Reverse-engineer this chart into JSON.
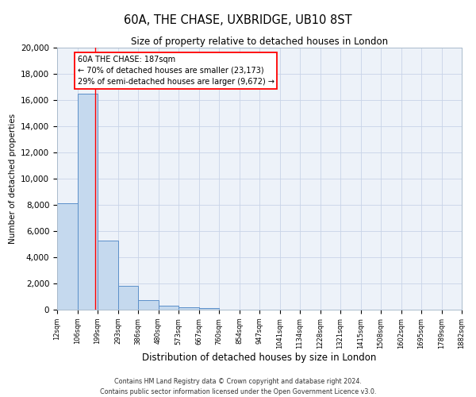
{
  "title": "60A, THE CHASE, UXBRIDGE, UB10 8ST",
  "subtitle": "Size of property relative to detached houses in London",
  "bar_heights": [
    8100,
    16500,
    5300,
    1800,
    700,
    300,
    200,
    100,
    0,
    0,
    0,
    0,
    0,
    0,
    0,
    0,
    0,
    0,
    0,
    0
  ],
  "bin_labels": [
    "12sqm",
    "106sqm",
    "199sqm",
    "293sqm",
    "386sqm",
    "480sqm",
    "573sqm",
    "667sqm",
    "760sqm",
    "854sqm",
    "947sqm",
    "1041sqm",
    "1134sqm",
    "1228sqm",
    "1321sqm",
    "1415sqm",
    "1508sqm",
    "1602sqm",
    "1695sqm",
    "1789sqm",
    "1882sqm"
  ],
  "bar_color": "#c5d9ee",
  "bar_edge_color": "#5b8fc9",
  "bar_edge_width": 0.7,
  "grid_color": "#c8d4e8",
  "background_color": "#edf2f9",
  "ylabel": "Number of detached properties",
  "xlabel": "Distribution of detached houses by size in London",
  "ylim": [
    0,
    20000
  ],
  "yticks": [
    0,
    2000,
    4000,
    6000,
    8000,
    10000,
    12000,
    14000,
    16000,
    18000,
    20000
  ],
  "red_line_x": 1.87,
  "annotation_title": "60A THE CHASE: 187sqm",
  "annotation_line1": "← 70% of detached houses are smaller (23,173)",
  "annotation_line2": "29% of semi-detached houses are larger (9,672) →",
  "footnote1": "Contains HM Land Registry data © Crown copyright and database right 2024.",
  "footnote2": "Contains public sector information licensed under the Open Government Licence v3.0."
}
